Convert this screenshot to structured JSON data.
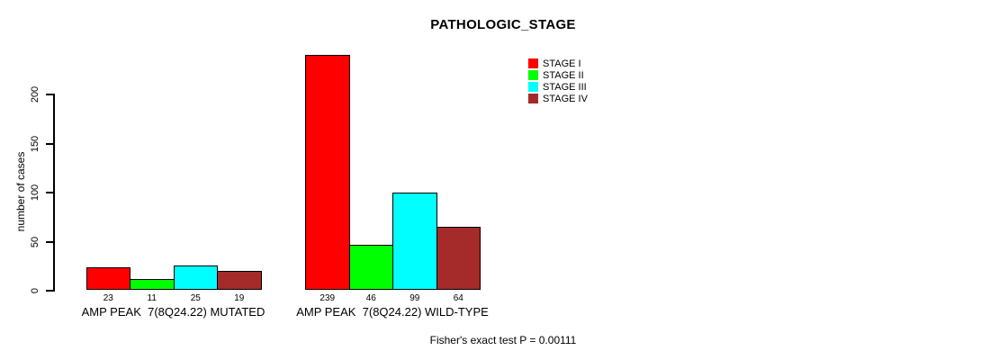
{
  "chart_data": {
    "type": "bar",
    "title": "PATHOLOGIC_STAGE",
    "ylabel": "number of cases",
    "xlabel": "",
    "ylim": [
      0,
      200
    ],
    "yticks": [
      0,
      50,
      100,
      150,
      200
    ],
    "grid": false,
    "categories": [
      "AMP PEAK  7(8Q24.22) MUTATED",
      "AMP PEAK  7(8Q24.22) WILD-TYPE"
    ],
    "series": [
      {
        "name": "STAGE I",
        "color": "#FF0000",
        "values": [
          23,
          239
        ]
      },
      {
        "name": "STAGE II",
        "color": "#00FF00",
        "values": [
          11,
          46
        ]
      },
      {
        "name": "STAGE III",
        "color": "#00FFFF",
        "values": [
          25,
          99
        ]
      },
      {
        "name": "STAGE IV",
        "color": "#A52A2A",
        "values": [
          19,
          64
        ]
      }
    ],
    "bar_value_labels_shown": true,
    "legend": {
      "position": "top-right",
      "entries": [
        "STAGE I",
        "STAGE II",
        "STAGE III",
        "STAGE IV"
      ]
    },
    "annotation": "Fisher's exact test P = 0.00111"
  }
}
